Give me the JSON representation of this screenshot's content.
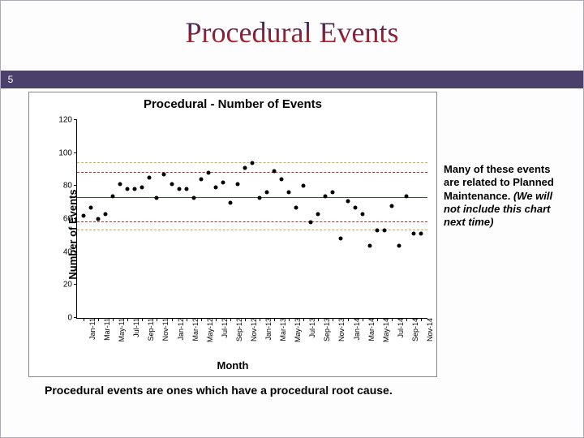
{
  "slide": {
    "title": "Procedural Events",
    "page_number": "5"
  },
  "annotation_text": "Many of these events are related to Planned Maintenance. ",
  "annotation_tail_italic": "(We will not include this chart next time)",
  "caption_text": "Procedural events are ones which have a procedural root cause.",
  "chart": {
    "type": "scatter",
    "title": "Procedural - Number of Events",
    "xlabel": "Month",
    "ylabel": "Number of Events",
    "title_fontsize": 15,
    "label_fontsize": 13,
    "tick_fontsize": 10,
    "background_color": "#ffffff",
    "axis_color": "#000000",
    "ylim": [
      0,
      120
    ],
    "yticks": [
      0,
      20,
      40,
      60,
      80,
      100,
      120
    ],
    "x_categories": [
      "Jan-11",
      "Mar-11",
      "May-11",
      "Jul-11",
      "Sep-11",
      "Nov-11",
      "Jan-12",
      "Mar-12",
      "May-12",
      "Jul-12",
      "Sep-12",
      "Nov-12",
      "Jan-13",
      "Mar-13",
      "May-13",
      "Jul-13",
      "Sep-13",
      "Nov-13",
      "Jan-14",
      "Mar-14",
      "May-14",
      "Jul-14",
      "Sep-14",
      "Nov-14"
    ],
    "hlines": [
      {
        "y": 94,
        "color": "#dba94a",
        "dash": "6 5",
        "width": 1.5
      },
      {
        "y": 88,
        "color": "#b03030",
        "dash": "3 3 8 3",
        "width": 1.2
      },
      {
        "y": 73,
        "color": "#2c5d2c",
        "dash": "",
        "width": 1.4
      },
      {
        "y": 58,
        "color": "#b03030",
        "dash": "3 3 8 3",
        "width": 1.2
      },
      {
        "y": 53,
        "color": "#dba94a",
        "dash": "6 5",
        "width": 1.5
      }
    ],
    "marker_color": "#000000",
    "marker_size": 5,
    "values": [
      62,
      67,
      60,
      63,
      74,
      81,
      78,
      78,
      79,
      85,
      73,
      87,
      81,
      78,
      78,
      73,
      84,
      88,
      79,
      82,
      70,
      81,
      91,
      94,
      73,
      76,
      89,
      84,
      76,
      67,
      80,
      58,
      63,
      74,
      76,
      48,
      71,
      67,
      63,
      44,
      53,
      53,
      68,
      44,
      74,
      51,
      51
    ]
  }
}
